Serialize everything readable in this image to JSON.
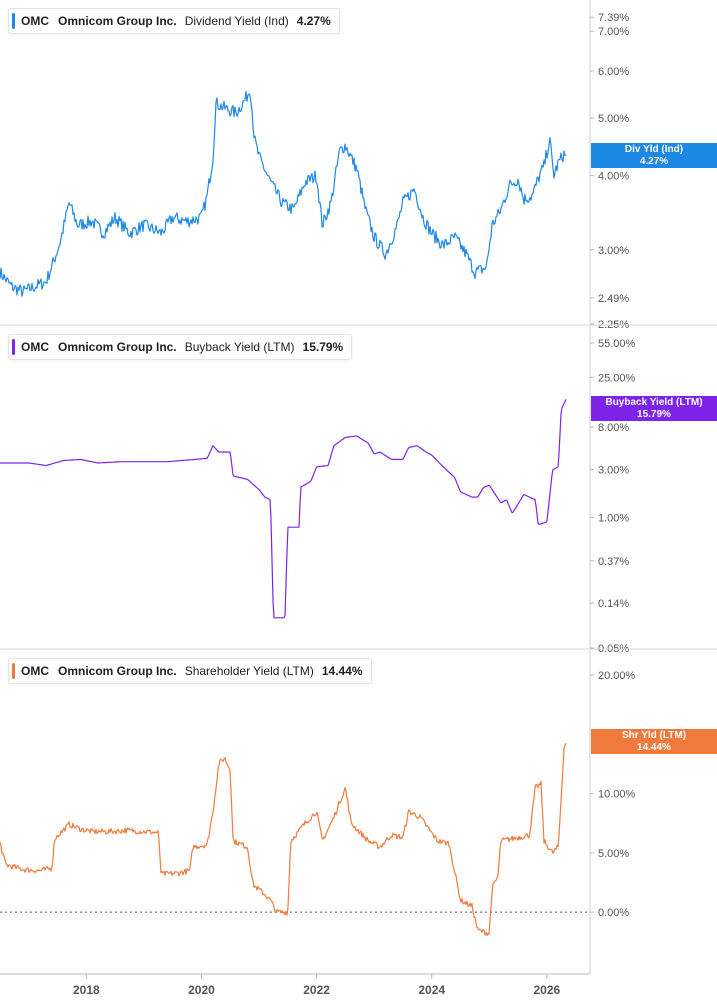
{
  "chart_data": [
    {
      "type": "line",
      "ticker": "OMC",
      "company": "Omnicom Group Inc.",
      "metric": "Dividend Yield (Ind)",
      "value_label": "4.27%",
      "tag_label": "Div Yld (Ind)",
      "color": "#1e88e5",
      "scale": "log",
      "ylim": [
        2.25,
        7.6
      ],
      "y_ticks": [
        "7.39%",
        "7.00%",
        "6.00%",
        "5.00%",
        "4.00%",
        "3.00%",
        "2.49%",
        "2.25%"
      ],
      "y_tick_values": [
        7.39,
        7.0,
        6.0,
        5.0,
        4.0,
        3.0,
        2.49,
        2.25
      ],
      "noise": 0.025,
      "points": [
        [
          2016.5,
          2.75
        ],
        [
          2016.7,
          2.6
        ],
        [
          2016.9,
          2.55
        ],
        [
          2017.1,
          2.6
        ],
        [
          2017.3,
          2.65
        ],
        [
          2017.45,
          2.9
        ],
        [
          2017.55,
          3.1
        ],
        [
          2017.7,
          3.6
        ],
        [
          2017.85,
          3.3
        ],
        [
          2018.1,
          3.35
        ],
        [
          2018.3,
          3.2
        ],
        [
          2018.5,
          3.4
        ],
        [
          2018.75,
          3.2
        ],
        [
          2019.0,
          3.3
        ],
        [
          2019.3,
          3.2
        ],
        [
          2019.5,
          3.4
        ],
        [
          2019.75,
          3.35
        ],
        [
          2020.0,
          3.4
        ],
        [
          2020.1,
          3.7
        ],
        [
          2020.2,
          4.3
        ],
        [
          2020.25,
          5.3
        ],
        [
          2020.4,
          5.2
        ],
        [
          2020.6,
          5.1
        ],
        [
          2020.75,
          5.35
        ],
        [
          2020.85,
          5.6
        ],
        [
          2020.92,
          4.6
        ],
        [
          2021.0,
          4.3
        ],
        [
          2021.2,
          3.9
        ],
        [
          2021.4,
          3.6
        ],
        [
          2021.6,
          3.5
        ],
        [
          2021.8,
          3.9
        ],
        [
          2022.0,
          4.0
        ],
        [
          2022.1,
          3.3
        ],
        [
          2022.25,
          3.6
        ],
        [
          2022.4,
          4.4
        ],
        [
          2022.5,
          4.5
        ],
        [
          2022.7,
          4.1
        ],
        [
          2022.85,
          3.5
        ],
        [
          2023.0,
          3.15
        ],
        [
          2023.2,
          2.95
        ],
        [
          2023.4,
          3.3
        ],
        [
          2023.5,
          3.6
        ],
        [
          2023.7,
          3.8
        ],
        [
          2023.85,
          3.4
        ],
        [
          2024.0,
          3.2
        ],
        [
          2024.2,
          3.05
        ],
        [
          2024.4,
          3.15
        ],
        [
          2024.6,
          2.95
        ],
        [
          2024.75,
          2.75
        ],
        [
          2024.95,
          2.8
        ],
        [
          2025.05,
          3.3
        ],
        [
          2025.2,
          3.5
        ],
        [
          2025.35,
          3.85
        ],
        [
          2025.5,
          3.95
        ],
        [
          2025.6,
          3.65
        ],
        [
          2025.75,
          3.7
        ],
        [
          2025.85,
          3.95
        ],
        [
          2025.95,
          4.15
        ],
        [
          2026.05,
          4.6
        ],
        [
          2026.12,
          4.0
        ],
        [
          2026.2,
          4.2
        ],
        [
          2026.3,
          4.35
        ],
        [
          2026.35,
          4.27
        ]
      ]
    },
    {
      "type": "line",
      "ticker": "OMC",
      "company": "Omnicom Group Inc.",
      "metric": "Buyback Yield (LTM)",
      "value_label": "15.79%",
      "tag_label": "Buyback Yield (LTM)",
      "color": "#7d24e8",
      "scale": "log",
      "ylim": [
        0.05,
        55
      ],
      "y_ticks": [
        "55.00%",
        "25.00%",
        "8.00%",
        "3.00%",
        "1.00%",
        "0.37%",
        "0.14%",
        "0.05%"
      ],
      "y_tick_values": [
        55,
        25,
        8,
        3,
        1,
        0.37,
        0.14,
        0.05
      ],
      "noise": 0.0,
      "points": [
        [
          2016.5,
          3.5
        ],
        [
          2017.0,
          3.5
        ],
        [
          2017.3,
          3.3
        ],
        [
          2017.6,
          3.7
        ],
        [
          2017.9,
          3.8
        ],
        [
          2018.2,
          3.5
        ],
        [
          2018.6,
          3.6
        ],
        [
          2019.0,
          3.6
        ],
        [
          2019.4,
          3.6
        ],
        [
          2019.9,
          3.8
        ],
        [
          2020.1,
          3.9
        ],
        [
          2020.2,
          5.2
        ],
        [
          2020.3,
          4.5
        ],
        [
          2020.5,
          4.5
        ],
        [
          2020.55,
          2.6
        ],
        [
          2020.8,
          2.4
        ],
        [
          2021.0,
          1.9
        ],
        [
          2021.1,
          1.6
        ],
        [
          2021.2,
          1.5
        ],
        [
          2021.25,
          0.1
        ],
        [
          2021.45,
          0.1
        ],
        [
          2021.5,
          0.8
        ],
        [
          2021.7,
          0.8
        ],
        [
          2021.72,
          2.0
        ],
        [
          2021.9,
          2.3
        ],
        [
          2022.0,
          3.2
        ],
        [
          2022.2,
          3.3
        ],
        [
          2022.3,
          5.2
        ],
        [
          2022.5,
          6.3
        ],
        [
          2022.7,
          6.5
        ],
        [
          2022.9,
          5.5
        ],
        [
          2023.0,
          4.3
        ],
        [
          2023.1,
          4.5
        ],
        [
          2023.3,
          3.8
        ],
        [
          2023.5,
          3.8
        ],
        [
          2023.6,
          5.0
        ],
        [
          2023.75,
          5.2
        ],
        [
          2023.9,
          4.5
        ],
        [
          2024.0,
          4.2
        ],
        [
          2024.2,
          3.2
        ],
        [
          2024.4,
          2.5
        ],
        [
          2024.5,
          1.8
        ],
        [
          2024.7,
          1.6
        ],
        [
          2024.8,
          1.6
        ],
        [
          2024.9,
          2.0
        ],
        [
          2025.0,
          2.1
        ],
        [
          2025.2,
          1.4
        ],
        [
          2025.3,
          1.5
        ],
        [
          2025.4,
          1.1
        ],
        [
          2025.6,
          1.7
        ],
        [
          2025.8,
          1.5
        ],
        [
          2025.85,
          0.85
        ],
        [
          2026.0,
          0.9
        ],
        [
          2026.1,
          3.0
        ],
        [
          2026.2,
          3.2
        ],
        [
          2026.25,
          12.0
        ],
        [
          2026.35,
          15.79
        ]
      ]
    },
    {
      "type": "line",
      "ticker": "OMC",
      "company": "Omnicom Group Inc.",
      "metric": "Shareholder Yield (LTM)",
      "value_label": "14.44%",
      "tag_label": "Shr Yld (LTM)",
      "color": "#f07a3c",
      "scale": "linear",
      "ylim": [
        -4.2,
        20.5
      ],
      "y_ticks": [
        "20.00%",
        "15.00%",
        "10.00%",
        "5.00%",
        "0.00%"
      ],
      "y_tick_values": [
        20,
        15,
        10,
        5,
        0
      ],
      "zero_line": true,
      "noise": 0.12,
      "points": [
        [
          2016.5,
          5.8
        ],
        [
          2016.6,
          4.0
        ],
        [
          2016.9,
          3.6
        ],
        [
          2017.2,
          3.5
        ],
        [
          2017.4,
          3.7
        ],
        [
          2017.45,
          6.2
        ],
        [
          2017.7,
          7.4
        ],
        [
          2017.9,
          7.0
        ],
        [
          2018.1,
          6.8
        ],
        [
          2018.4,
          6.8
        ],
        [
          2018.7,
          6.9
        ],
        [
          2019.0,
          6.8
        ],
        [
          2019.25,
          6.7
        ],
        [
          2019.3,
          3.2
        ],
        [
          2019.6,
          3.3
        ],
        [
          2019.8,
          3.5
        ],
        [
          2019.85,
          5.5
        ],
        [
          2020.1,
          5.7
        ],
        [
          2020.2,
          8.5
        ],
        [
          2020.3,
          12.5
        ],
        [
          2020.4,
          13.0
        ],
        [
          2020.5,
          12.0
        ],
        [
          2020.55,
          6.0
        ],
        [
          2020.8,
          5.5
        ],
        [
          2020.9,
          2.3
        ],
        [
          2021.1,
          1.5
        ],
        [
          2021.2,
          1.0
        ],
        [
          2021.3,
          0.0
        ],
        [
          2021.5,
          0.0
        ],
        [
          2021.55,
          6.0
        ],
        [
          2021.8,
          7.5
        ],
        [
          2022.0,
          8.5
        ],
        [
          2022.1,
          6.0
        ],
        [
          2022.3,
          8.0
        ],
        [
          2022.5,
          10.5
        ],
        [
          2022.6,
          7.5
        ],
        [
          2022.9,
          6.0
        ],
        [
          2023.1,
          5.5
        ],
        [
          2023.3,
          6.5
        ],
        [
          2023.5,
          6.3
        ],
        [
          2023.6,
          8.5
        ],
        [
          2023.8,
          8.0
        ],
        [
          2023.95,
          7.0
        ],
        [
          2024.1,
          6.0
        ],
        [
          2024.3,
          5.8
        ],
        [
          2024.5,
          1.0
        ],
        [
          2024.7,
          0.5
        ],
        [
          2024.8,
          -1.5
        ],
        [
          2025.0,
          -1.8
        ],
        [
          2025.05,
          2.0
        ],
        [
          2025.15,
          3.0
        ],
        [
          2025.2,
          6.0
        ],
        [
          2025.5,
          6.3
        ],
        [
          2025.7,
          6.5
        ],
        [
          2025.8,
          10.5
        ],
        [
          2025.9,
          10.8
        ],
        [
          2025.95,
          6.0
        ],
        [
          2026.1,
          5.0
        ],
        [
          2026.2,
          5.5
        ],
        [
          2026.3,
          14.0
        ],
        [
          2026.35,
          14.44
        ]
      ]
    }
  ],
  "x_axis": {
    "labels": [
      "2018",
      "2020",
      "2022",
      "2024",
      "2026"
    ],
    "values": [
      2018,
      2020,
      2022,
      2024,
      2026
    ],
    "range": [
      2016.5,
      2026.75
    ]
  }
}
